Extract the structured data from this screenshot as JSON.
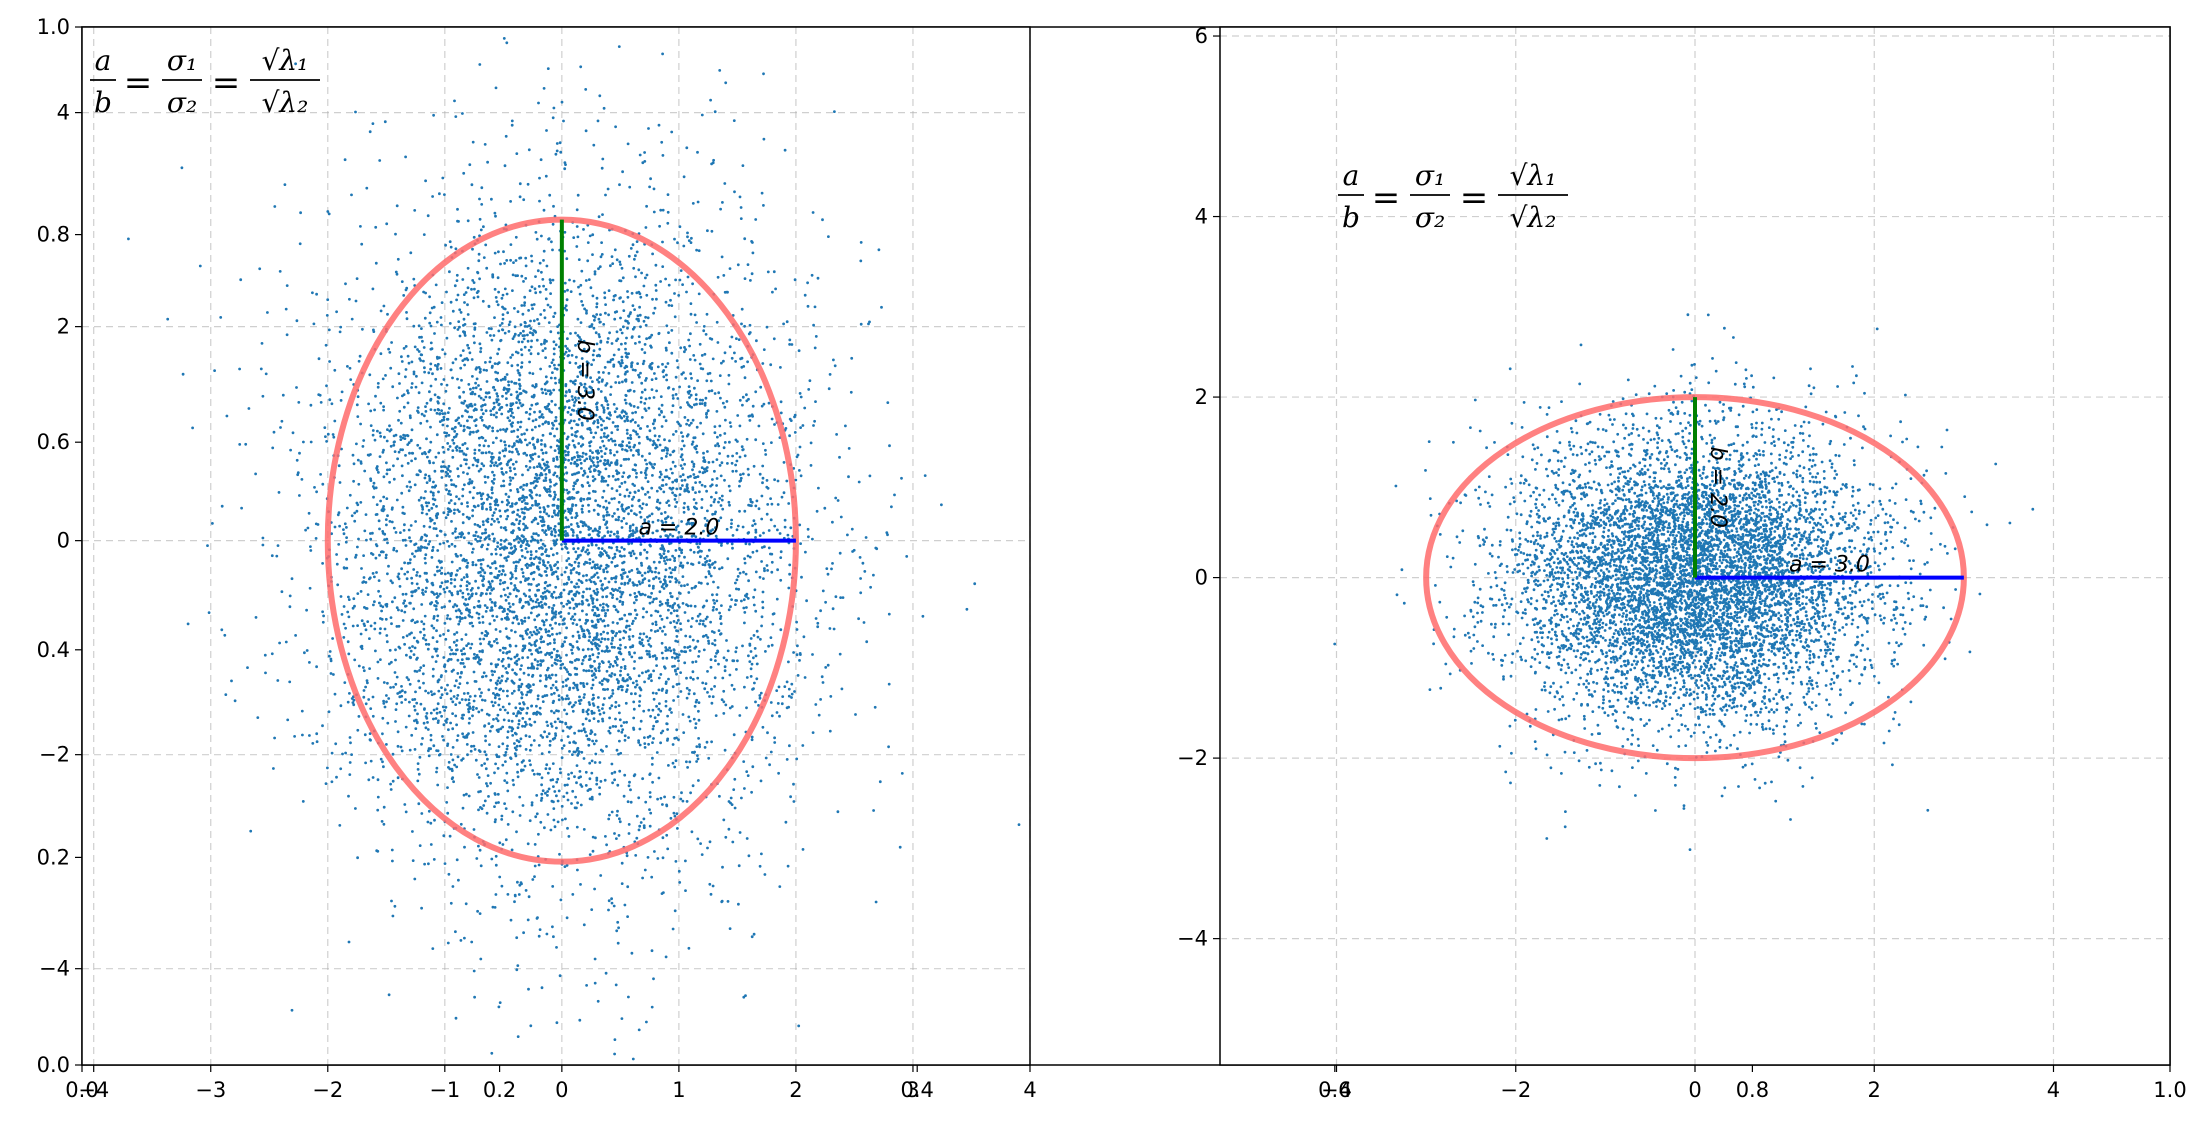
{
  "background_axes": {
    "y_ticks": [
      "1.0",
      "0.8",
      "0.6",
      "0.4",
      "0.2",
      "0.0"
    ],
    "x_ticks_left": [
      "0.0",
      "0.2",
      "0.4"
    ],
    "x_ticks_right": [
      "0.6",
      "0.8",
      "1.0"
    ]
  },
  "chart_data": [
    {
      "type": "scatter",
      "point_color": "#1f77b4",
      "xlim": [
        -4.1,
        4
      ],
      "ylim": [
        -4.9,
        4.8
      ],
      "x_ticks": [
        "−4",
        "−3",
        "−2",
        "−1",
        "0",
        "1",
        "2",
        "3",
        "4"
      ],
      "y_ticks": [
        "4",
        "2",
        "0",
        "−2",
        "−4"
      ],
      "grid": true,
      "std_x": 1.0,
      "std_y": 1.5,
      "n_points": 7000,
      "ellipse": {
        "a": 2.0,
        "b": 3.0,
        "color": "#ff6b6b"
      },
      "a_label": "a = 2.0",
      "b_label": "b = 3.0",
      "a_color": "#0000ff",
      "b_color": "#008000",
      "formula": {
        "lhs_num": "a",
        "lhs_den": "b",
        "mid_num": "σ₁",
        "mid_den": "σ₂",
        "rhs_num": "√λ₁",
        "rhs_den": "√λ₂"
      }
    },
    {
      "type": "scatter",
      "point_color": "#1f77b4",
      "xlim": [
        -5.3,
        5.3
      ],
      "ylim": [
        -5.4,
        6.1
      ],
      "x_ticks": [
        "−4",
        "−2",
        "0",
        "2",
        "4"
      ],
      "y_ticks": [
        "6",
        "4",
        "2",
        "0",
        "−2",
        "−4"
      ],
      "grid": true,
      "std_x": 1.0,
      "std_y": 0.8,
      "n_points": 7000,
      "ellipse": {
        "a": 3.0,
        "b": 2.0,
        "color": "#ff6b6b"
      },
      "a_label": "a = 3.0",
      "b_label": "b = 2.0",
      "a_color": "#0000ff",
      "b_color": "#008000",
      "formula": {
        "lhs_num": "a",
        "lhs_den": "b",
        "mid_num": "σ₁",
        "mid_den": "σ₂",
        "rhs_num": "√λ₁",
        "rhs_den": "√λ₂"
      }
    }
  ]
}
